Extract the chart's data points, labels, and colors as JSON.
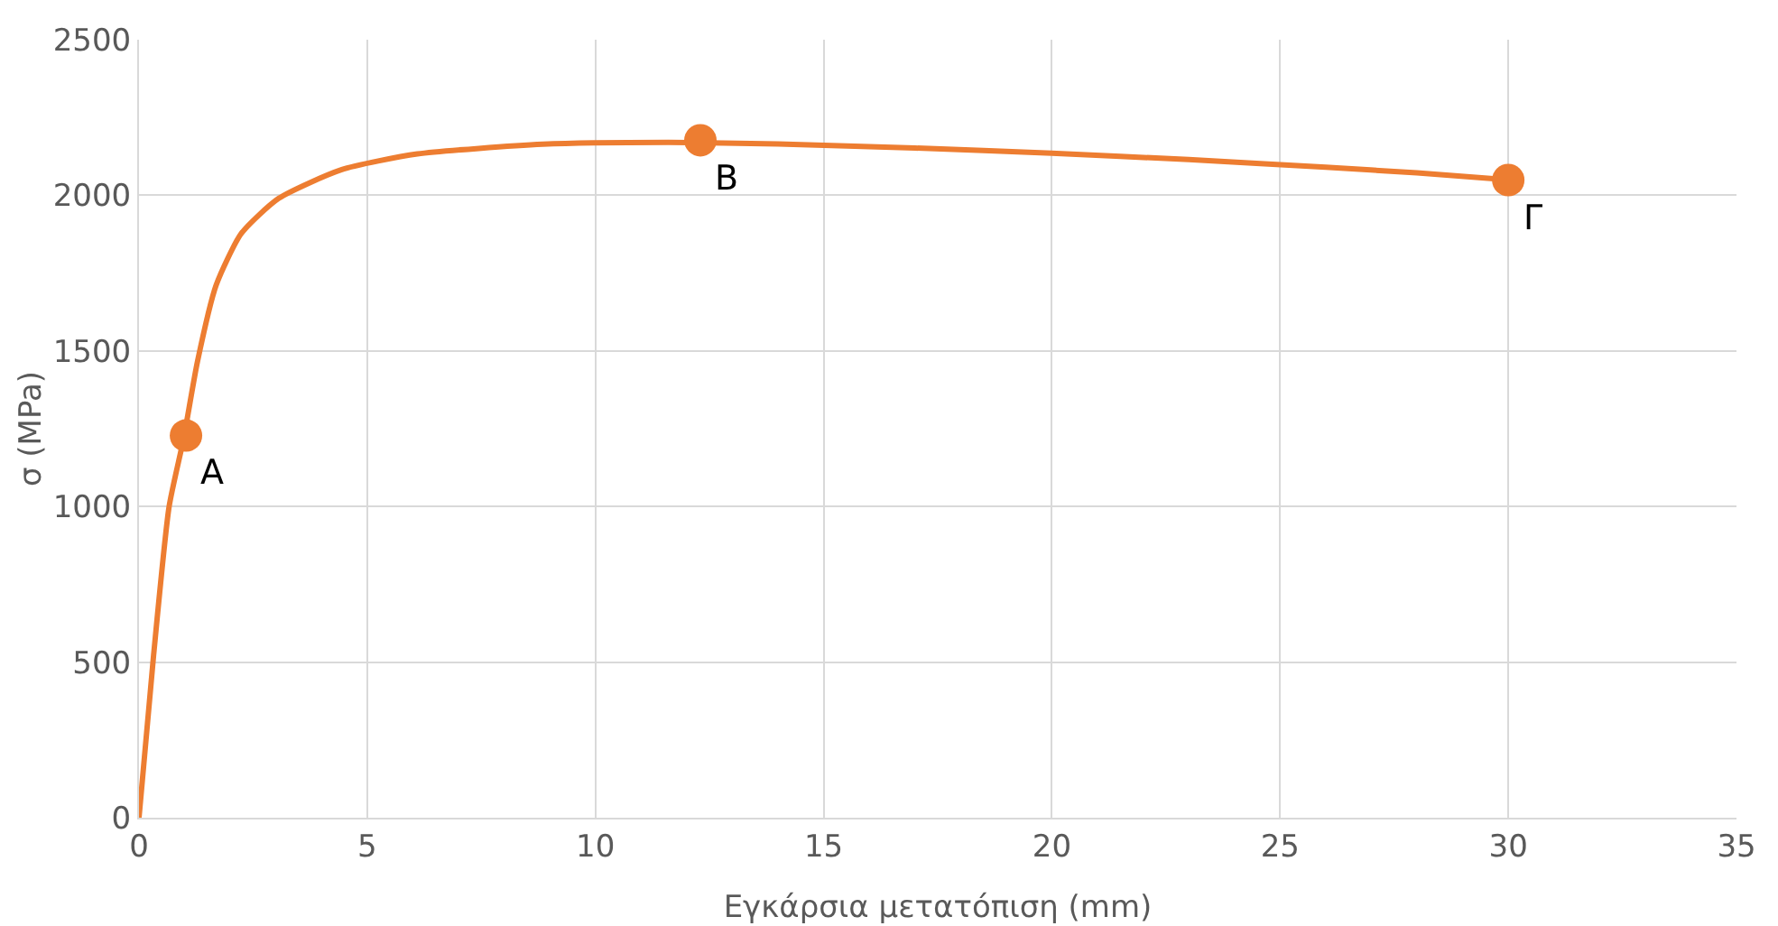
{
  "chart_data": {
    "type": "line",
    "xlabel": "Εγκάρσια μετατόπιση (mm)",
    "ylabel": "σ (MPa)",
    "xlim": [
      0,
      35
    ],
    "xticks": [
      0,
      5,
      10,
      15,
      20,
      25,
      30,
      35
    ],
    "ylim": [
      0,
      2500
    ],
    "yticks": [
      0,
      500,
      1000,
      1500,
      2000,
      2500
    ],
    "grid": true,
    "series": [
      {
        "color": "#ed7d31",
        "marker": "none",
        "line_style": "solid",
        "x": [
          0,
          0.32,
          0.66,
          0.98,
          1.28,
          1.69,
          2.24,
          3.06,
          4.43,
          6.1,
          8.85,
          11.6,
          14,
          17,
          20,
          23,
          26,
          28,
          30
        ],
        "values": [
          0,
          522,
          1000,
          1220,
          1465,
          1711,
          1877,
          1990,
          2082,
          2133,
          2164,
          2170,
          2165,
          2152,
          2135,
          2115,
          2090,
          2072,
          2050
        ]
      },
      {
        "type": "scatter",
        "color": "#ed7d31",
        "marker": "circle",
        "x": [
          1.03,
          12.3,
          30
        ],
        "values": [
          1228,
          2177,
          2049
        ]
      }
    ],
    "annotations": [
      {
        "text": "A",
        "x": 1.03,
        "y": 1228
      },
      {
        "text": "B",
        "x": 12.3,
        "y": 2177
      },
      {
        "text": "Γ",
        "x": 30,
        "y": 2049
      }
    ]
  }
}
